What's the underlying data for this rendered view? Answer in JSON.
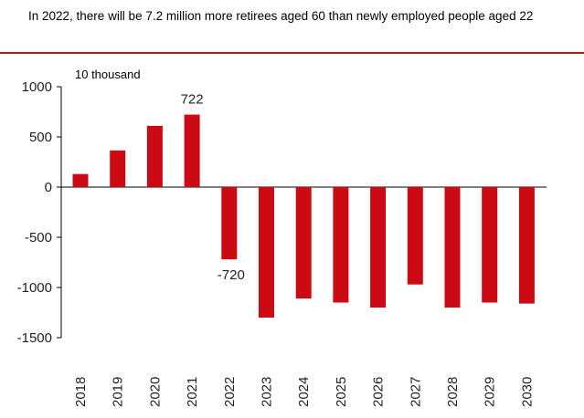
{
  "title": "In 2022, there will be 7.2 million  more retirees aged 60 than newly employed people aged 22",
  "colors": {
    "bar": "#cc0a14",
    "rule": "#c0141b",
    "axis": "#000000"
  },
  "chart_data": {
    "type": "bar",
    "title": "In 2022, there will be 7.2 million  more retirees aged 60 than newly employed people aged 22",
    "unit_label": "10 thousand",
    "categories": [
      "2018",
      "2019",
      "2020",
      "2021",
      "2022",
      "2023",
      "2024",
      "2025",
      "2026",
      "2027",
      "2028",
      "2029",
      "2030"
    ],
    "values": [
      130,
      365,
      610,
      722,
      -720,
      -1300,
      -1110,
      -1150,
      -1200,
      -970,
      -1200,
      -1150,
      -1160
    ],
    "data_labels": [
      {
        "category": "2021",
        "text": "722"
      },
      {
        "category": "2022",
        "text": "-720"
      }
    ],
    "y_ticks": [
      1000,
      500,
      0,
      -500,
      -1000,
      -1500
    ],
    "ylim": [
      -1500,
      1000
    ],
    "grid": false,
    "legend": "none"
  }
}
